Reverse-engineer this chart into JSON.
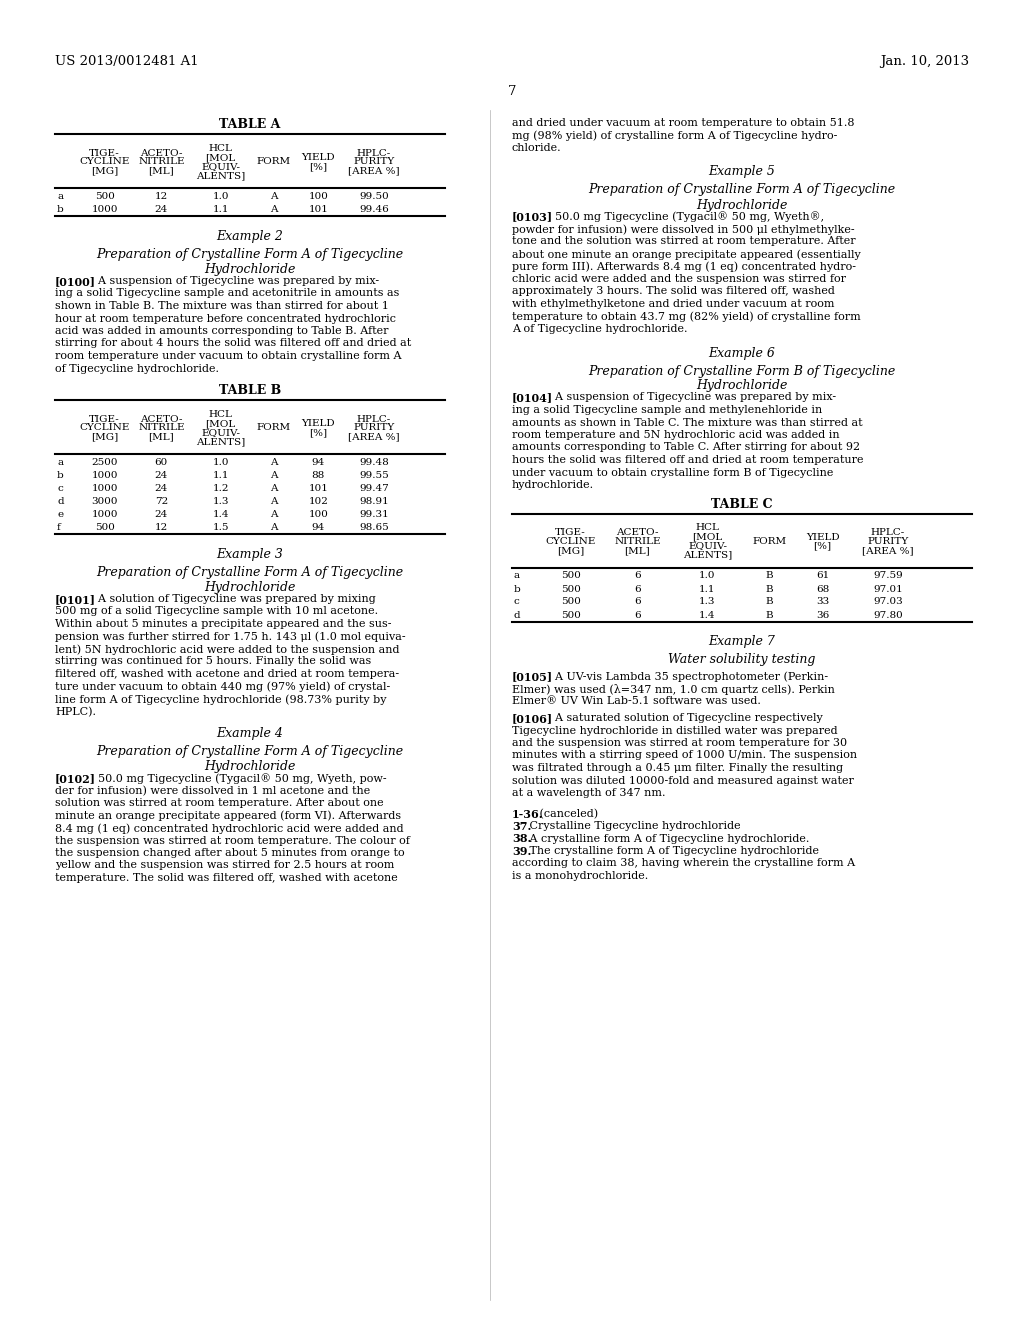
{
  "bg_color": "#ffffff",
  "header_left": "US 2013/0012481 A1",
  "header_right": "Jan. 10, 2013",
  "page_number": "7",
  "left_col": {
    "table_a": {
      "title": "TABLE A",
      "headers": [
        [
          "",
          "TIGE-\nCYCLINE\n[MG]",
          "ACETO-\nNITRILE\n[ML]",
          "HCL\n[MOL\nEQUIV-\nALENTS]",
          "FORM",
          "YIELD\n[%]",
          "HPLC-\nPURITY\n[AREA %]"
        ]
      ],
      "rows": [
        [
          "a",
          "500",
          "12",
          "1.0",
          "A",
          "100",
          "99.50"
        ],
        [
          "b",
          "1000",
          "24",
          "1.1",
          "A",
          "101",
          "99.46"
        ]
      ]
    },
    "example2_title": "Example 2",
    "example2_subtitle": "Preparation of Crystalline Form A of Tigecycline\nHydrochloride",
    "example2_text": "[0100]    A suspension of Tigecycline was prepared by mix-\ning a solid Tigecycline sample and acetonitrile in amounts as\nshown in Table B. The mixture was than stirred for about 1\nhour at room temperature before concentrated hydrochloric\nacid was added in amounts corresponding to Table B. After\nstirring for about 4 hours the solid was filtered off and dried at\nroom temperature under vacuum to obtain crystalline form A\nof Tigecycline hydrochloride.",
    "table_b": {
      "title": "TABLE B",
      "headers": [
        [
          "",
          "TIGE-\nCYCLINE\n[MG]",
          "ACETO-\nNITRILE\n[ML]",
          "HCL\n[MOL\nEQUIV-\nALENTS]",
          "FORM",
          "YIELD\n[%]",
          "HPLC-\nPURITY\n[AREA %]"
        ]
      ],
      "rows": [
        [
          "a",
          "2500",
          "60",
          "1.0",
          "A",
          "94",
          "99.48"
        ],
        [
          "b",
          "1000",
          "24",
          "1.1",
          "A",
          "88",
          "99.55"
        ],
        [
          "c",
          "1000",
          "24",
          "1.2",
          "A",
          "101",
          "99.47"
        ],
        [
          "d",
          "3000",
          "72",
          "1.3",
          "A",
          "102",
          "98.91"
        ],
        [
          "e",
          "1000",
          "24",
          "1.4",
          "A",
          "100",
          "99.31"
        ],
        [
          "f",
          "500",
          "12",
          "1.5",
          "A",
          "94",
          "98.65"
        ]
      ]
    },
    "example3_title": "Example 3",
    "example3_subtitle": "Preparation of Crystalline Form A of Tigecycline\nHydrochloride",
    "example3_text": "[0101]    A solution of Tigecycline was prepared by mixing\n500 mg of a solid Tigecycline sample with 10 ml acetone.\nWithin about 5 minutes a precipitate appeared and the sus-\npension was further stirred for 1.75 h. 143 μl (1.0 mol equiva-\nlent) 5N hydrochloric acid were added to the suspension and\nstirring was continued for 5 hours. Finally the solid was\nfiltered off, washed with acetone and dried at room tempera-\nture under vacuum to obtain 440 mg (97% yield) of crystal-\nline form A of Tigecycline hydrochloride (98.73% purity by\nHPLC).",
    "example4_title": "Example 4",
    "example4_subtitle": "Preparation of Crystalline Form A of Tigecycline\nHydrochloride",
    "example4_text": "[0102]    50.0 mg Tigecycline (Tygacil® 50 mg, Wyeth, pow-\nder for infusion) were dissolved in 1 ml acetone and the\nsolution was stirred at room temperature. After about one\nminute an orange precipitate appeared (form VI). Afterwards\n8.4 mg (1 eq) concentrated hydrochloric acid were added and\nthe suspension was stirred at room temperature. The colour of\nthe suspension changed after about 5 minutes from orange to\nyellow and the suspension was stirred for 2.5 hours at room\ntemperature. The solid was filtered off, washed with acetone"
  },
  "right_col": {
    "cont_text": "and dried under vacuum at room temperature to obtain 51.8\nmg (98% yield) of crystalline form A of Tigecycline hydro-\nchloride.",
    "example5_title": "Example 5",
    "example5_subtitle": "Preparation of Crystalline Form A of Tigecycline\nHydrochloride",
    "example5_text": "[0103]    50.0 mg Tigecycline (Tygacil® 50 mg, Wyeth®,\npowder for infusion) were dissolved in 500 μl ethylmethylke-\ntone and the solution was stirred at room temperature. After\nabout one minute an orange precipitate appeared (essentially\npure form III). Afterwards 8.4 mg (1 eq) concentrated hydro-\nchloric acid were added and the suspension was stirred for\napproximately 3 hours. The solid was filtered off, washed\nwith ethylmethylketone and dried under vacuum at room\ntemperature to obtain 43.7 mg (82% yield) of crystalline form\nA of Tigecycline hydrochloride.",
    "example6_title": "Example 6",
    "example6_subtitle": "Preparation of Crystalline Form B of Tigecycline\nHydrochloride",
    "example6_text": "[0104]    A suspension of Tigecycline was prepared by mix-\ning a solid Tigecycline sample and methylenehloride in\namounts as shown in Table C. The mixture was than stirred at\nroom temperature and 5N hydrochloric acid was added in\namounts corresponding to Table C. After stirring for about 92\nhours the solid was filtered off and dried at room temperature\nunder vacuum to obtain crystalline form B of Tigecycline\nhydrochloride.",
    "table_c": {
      "title": "TABLE C",
      "headers": [
        [
          "",
          "TIGE-\nCYCLINE\n[MG]",
          "ACETO-\nNITRILE\n[ML]",
          "HCL\n[MOL\nEQUIV-\nALENTS]",
          "FORM",
          "YIELD\n[%]",
          "HPLC-\nPURITY\n[AREA %]"
        ]
      ],
      "rows": [
        [
          "a",
          "500",
          "6",
          "1.0",
          "B",
          "61",
          "97.59"
        ],
        [
          "b",
          "500",
          "6",
          "1.1",
          "B",
          "68",
          "97.01"
        ],
        [
          "c",
          "500",
          "6",
          "1.3",
          "B",
          "33",
          "97.03"
        ],
        [
          "d",
          "500",
          "6",
          "1.4",
          "B",
          "36",
          "97.80"
        ]
      ]
    },
    "example7_title": "Example 7",
    "example7_subtitle": "Water solubility testing",
    "example7_text": "[0105]    A UV-vis Lambda 35 spectrophotometer (Perkin-\nElmer) was used (λ=347 nm, 1.0 cm quartz cells). Perkin\nElmer® UV Win Lab-5.1 software was used.",
    "example7_text2": "[0106]    A saturated solution of Tigecycline respectively\nTigecycline hydrochloride in distilled water was prepared\nand the suspension was stirred at room temperature for 30\nminutes with a stirring speed of 1000 U/min. The suspension\nwas filtrated through a 0.45 μm filter. Finally the resulting\nsolution was diluted 10000-fold and measured against water\nat a wavelength of 347 nm.",
    "claims": "1-36. (canceled)\n37. Crystalline Tigecycline hydrochloride\n38. A crystalline form A of Tigecycline hydrochloride.\n39. The crystalline form A of Tigecycline hydrochloride\naccording to claim 38, having wherein the crystalline form A\nis a monohydrochloride."
  }
}
